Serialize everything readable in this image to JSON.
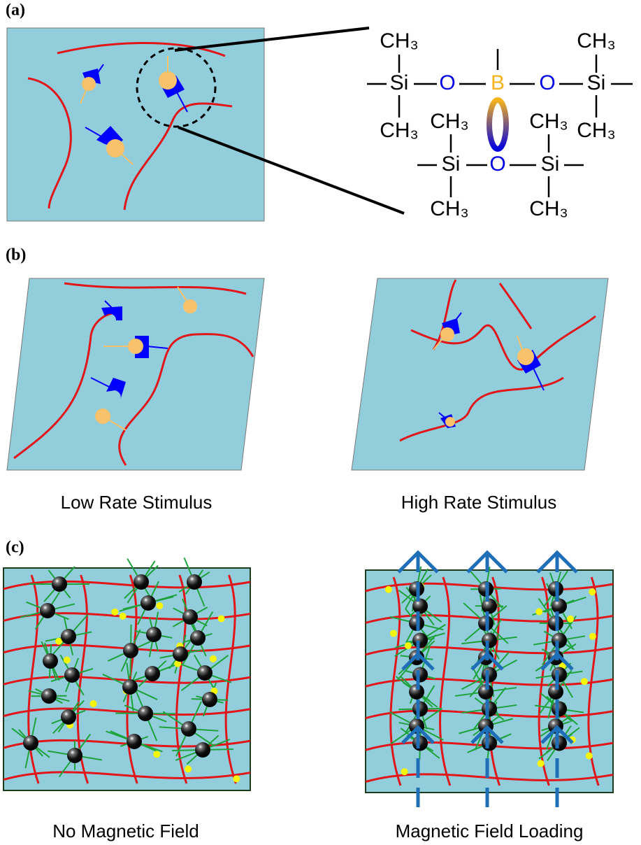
{
  "panels": [
    {
      "label": "(a)"
    },
    {
      "label": "(b)",
      "captions": [
        "Low Rate Stimulus",
        "High Rate Stimulus"
      ]
    },
    {
      "label": "(c)",
      "captions": [
        "No Magnetic Field",
        "Magnetic Field Loading"
      ]
    }
  ],
  "molecule": {
    "atoms": [
      "CH₃",
      "Si",
      "CH₃",
      "O",
      "B",
      "O",
      "CH₃",
      "Si",
      "CH₃",
      "CH₃",
      "CH₃",
      "Si",
      "O",
      "Si",
      "CH₃",
      "CH₃"
    ]
  }
}
